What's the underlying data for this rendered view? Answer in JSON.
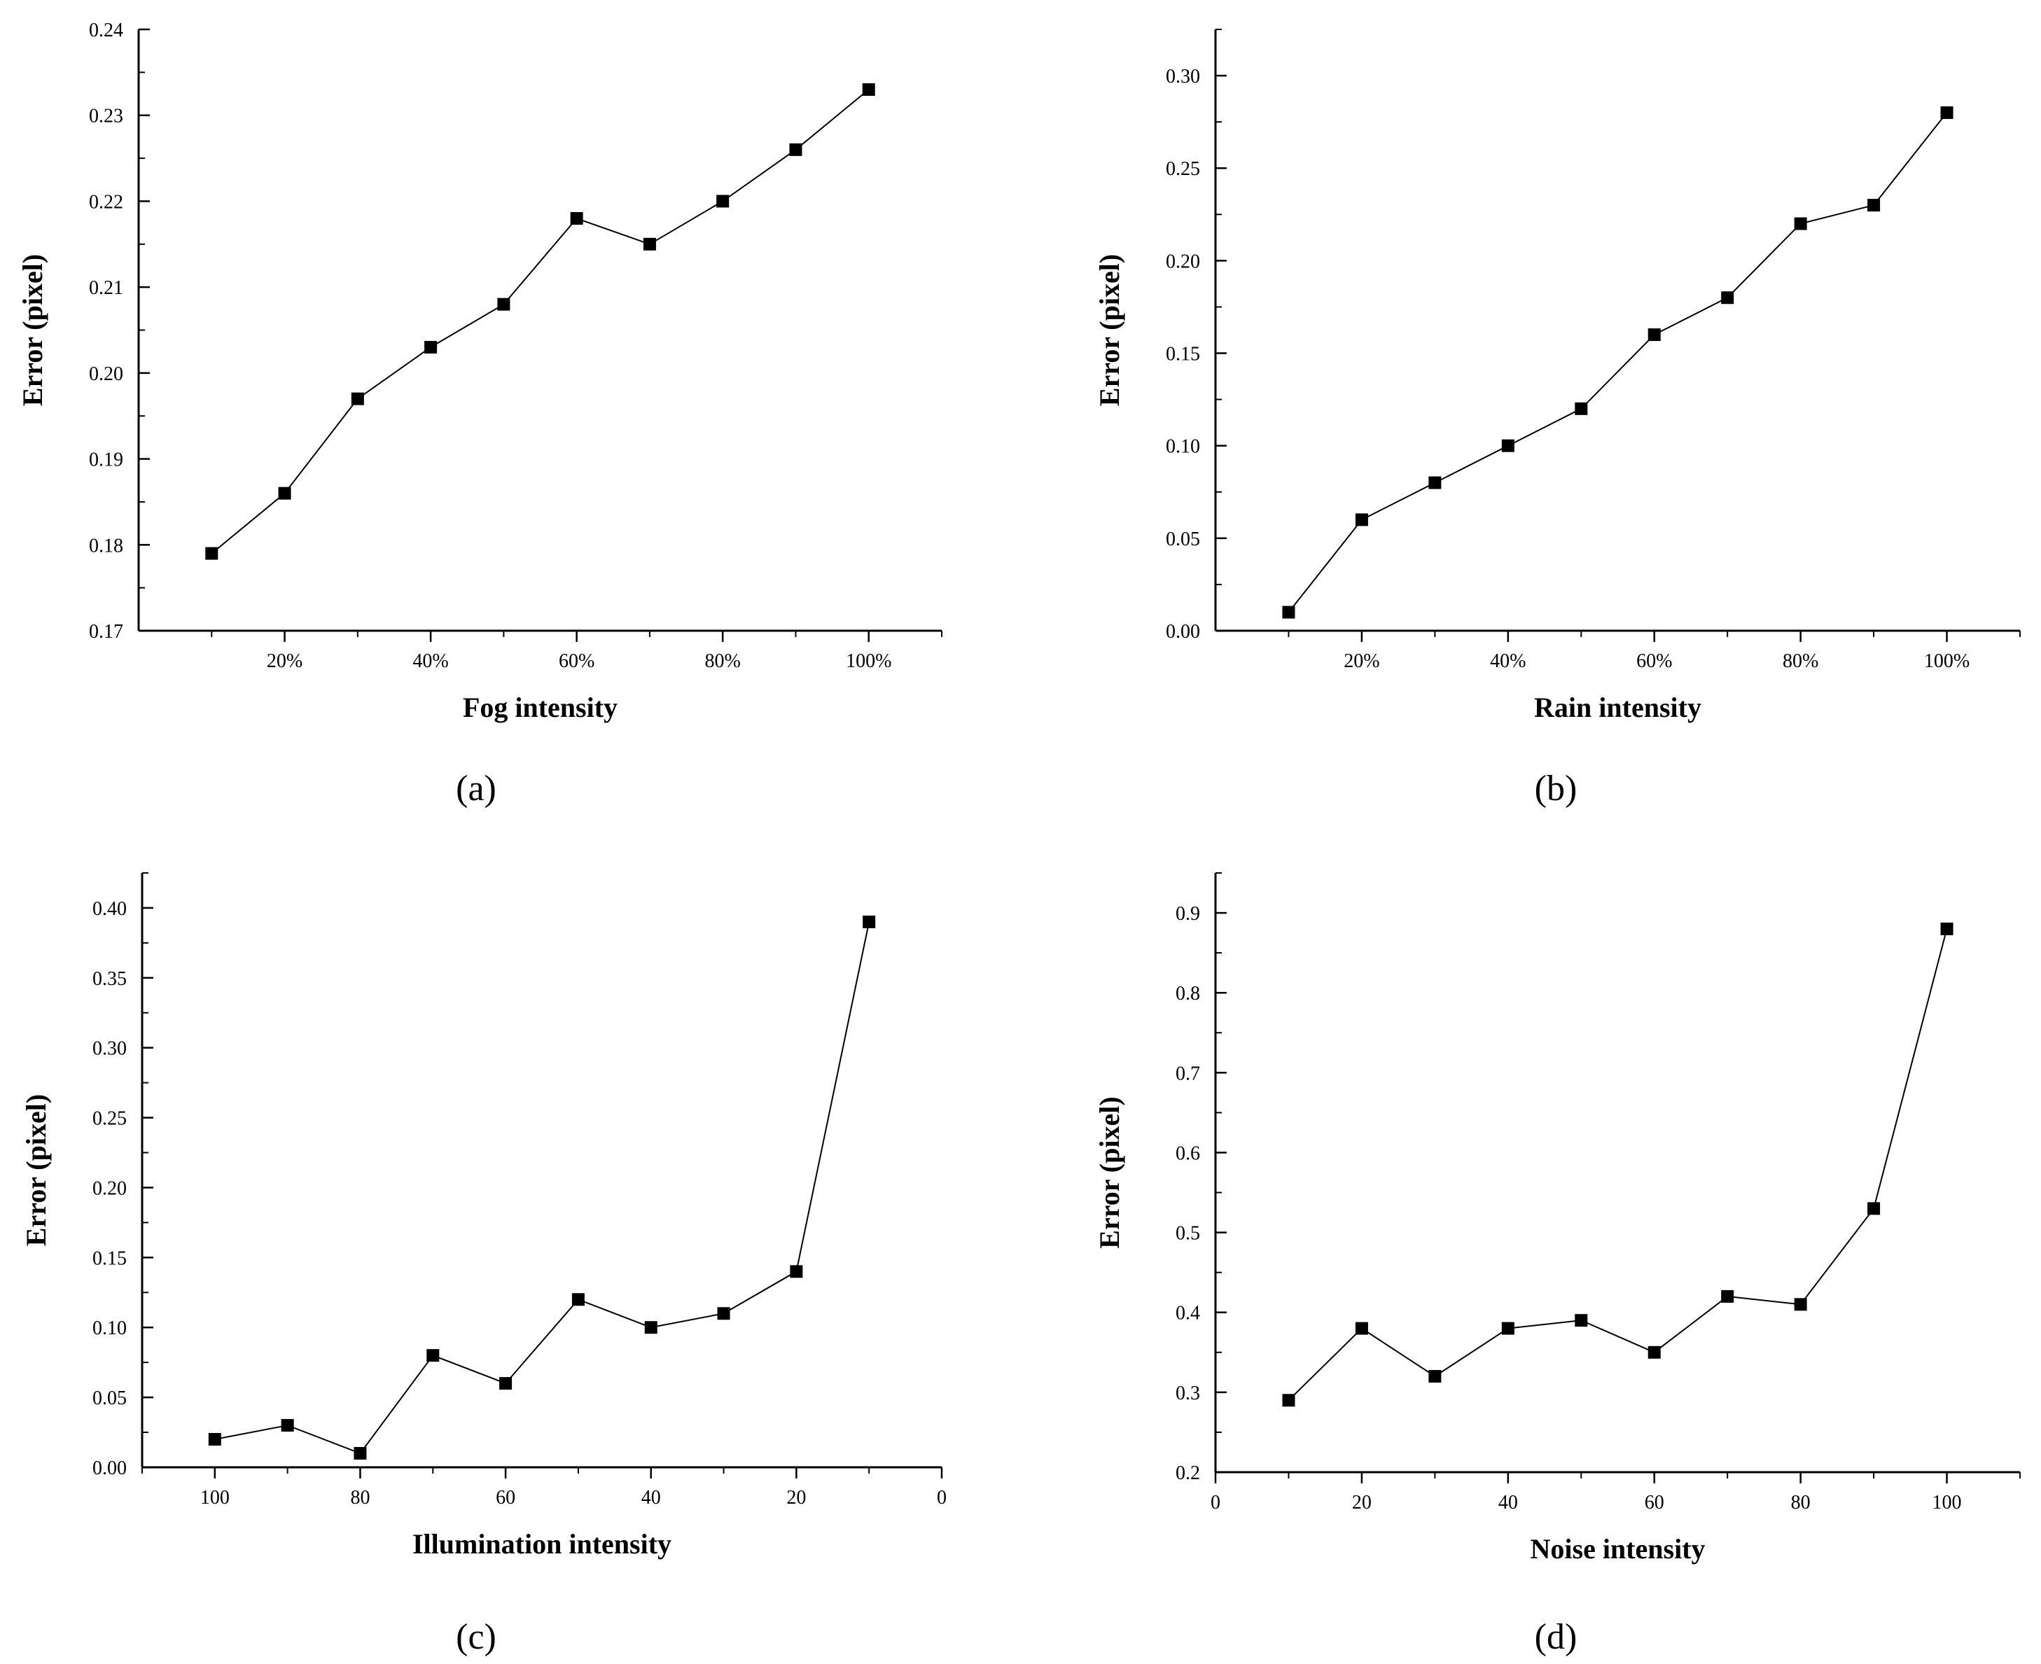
{
  "figure": {
    "panels": [
      {
        "caption": "(a)",
        "chart_data": {
          "type": "line",
          "xlabel": "Fog intensity",
          "ylabel": "Error (pixel)",
          "x": [
            10,
            20,
            30,
            40,
            50,
            60,
            70,
            80,
            90,
            100
          ],
          "values": [
            0.179,
            0.186,
            0.197,
            0.203,
            0.208,
            0.218,
            0.215,
            0.22,
            0.226,
            0.233
          ],
          "xlim": [
            0,
            110
          ],
          "ylim": [
            0.17,
            0.24
          ],
          "x_ticks": [
            20,
            40,
            60,
            80,
            100
          ],
          "x_tick_labels": [
            "20%",
            "40%",
            "60%",
            "80%",
            "100%"
          ],
          "y_ticks": [
            0.17,
            0.18,
            0.19,
            0.2,
            0.21,
            0.22,
            0.23,
            0.24
          ],
          "y_tick_labels": [
            "0.17",
            "0.18",
            "0.19",
            "0.20",
            "0.21",
            "0.22",
            "0.23",
            "0.24"
          ],
          "marker": "square",
          "color": "#000000"
        }
      },
      {
        "caption": "(b)",
        "chart_data": {
          "type": "line",
          "xlabel": "Rain intensity",
          "ylabel": "Error (pixel)",
          "x": [
            10,
            20,
            30,
            40,
            50,
            60,
            70,
            80,
            90,
            100
          ],
          "values": [
            0.01,
            0.06,
            0.08,
            0.1,
            0.12,
            0.16,
            0.18,
            0.22,
            0.23,
            0.28
          ],
          "xlim": [
            0,
            110
          ],
          "ylim": [
            0.0,
            0.325
          ],
          "x_ticks": [
            20,
            40,
            60,
            80,
            100
          ],
          "x_tick_labels": [
            "20%",
            "40%",
            "60%",
            "80%",
            "100%"
          ],
          "y_ticks": [
            0.0,
            0.05,
            0.1,
            0.15,
            0.2,
            0.25,
            0.3
          ],
          "y_tick_labels": [
            "0.00",
            "0.05",
            "0.10",
            "0.15",
            "0.20",
            "0.25",
            "0.30"
          ],
          "marker": "square",
          "color": "#000000"
        }
      },
      {
        "caption": "(c)",
        "chart_data": {
          "type": "line",
          "xlabel": "Illumination intensity",
          "ylabel": "Error (pixel)",
          "x_reversed": true,
          "x": [
            100,
            90,
            80,
            70,
            60,
            50,
            40,
            30,
            20,
            10
          ],
          "values": [
            0.02,
            0.03,
            0.01,
            0.08,
            0.06,
            0.12,
            0.1,
            0.11,
            0.14,
            0.39
          ],
          "xlim": [
            110,
            0
          ],
          "ylim": [
            0.0,
            0.425
          ],
          "x_ticks": [
            100,
            80,
            60,
            40,
            20,
            0
          ],
          "x_tick_labels": [
            "100",
            "80",
            "60",
            "40",
            "20",
            "0"
          ],
          "y_ticks": [
            0.0,
            0.05,
            0.1,
            0.15,
            0.2,
            0.25,
            0.3,
            0.35,
            0.4
          ],
          "y_tick_labels": [
            "0.00",
            "0.05",
            "0.10",
            "0.15",
            "0.20",
            "0.25",
            "0.30",
            "0.35",
            "0.40"
          ],
          "marker": "square",
          "color": "#000000"
        }
      },
      {
        "caption": "(d)",
        "chart_data": {
          "type": "line",
          "xlabel": "Noise intensity",
          "ylabel": "Error (pixel)",
          "x": [
            10,
            20,
            30,
            40,
            50,
            60,
            70,
            80,
            90,
            100
          ],
          "values": [
            0.29,
            0.38,
            0.32,
            0.38,
            0.39,
            0.35,
            0.42,
            0.41,
            0.53,
            0.88
          ],
          "xlim": [
            0,
            110
          ],
          "ylim": [
            0.2,
            0.95
          ],
          "x_ticks": [
            0,
            20,
            40,
            60,
            80,
            100
          ],
          "x_tick_labels": [
            "0",
            "20",
            "40",
            "60",
            "80",
            "100"
          ],
          "y_ticks": [
            0.2,
            0.3,
            0.4,
            0.5,
            0.6,
            0.7,
            0.8,
            0.9
          ],
          "y_tick_labels": [
            "0.2",
            "0.3",
            "0.4",
            "0.5",
            "0.6",
            "0.7",
            "0.8",
            "0.9"
          ],
          "marker": "square",
          "color": "#000000"
        }
      }
    ]
  }
}
